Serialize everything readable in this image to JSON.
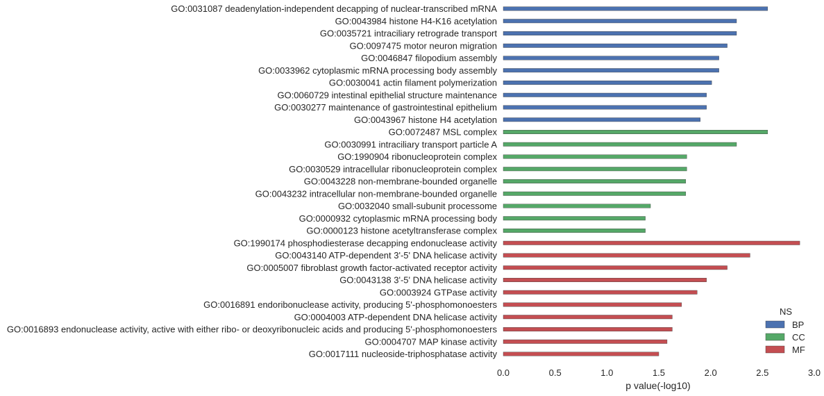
{
  "chart_data": {
    "type": "bar",
    "orientation": "horizontal",
    "xlabel": "p value(-log10)",
    "xlim": [
      0,
      3.0
    ],
    "xticks": [
      "0.0",
      "0.5",
      "1.0",
      "1.5",
      "2.0",
      "2.5",
      "3.0"
    ],
    "grid": false,
    "legend": {
      "title": "NS",
      "placement": "bottom-right",
      "entries": [
        {
          "name": "BP",
          "color": "#4c72b0"
        },
        {
          "name": "CC",
          "color": "#55a868"
        },
        {
          "name": "MF",
          "color": "#c44e52"
        }
      ]
    },
    "bars": [
      {
        "label": "GO:0031087 deadenylation-independent decapping of nuclear-transcribed mRNA",
        "value": 2.55,
        "ns": "BP"
      },
      {
        "label": "GO:0043984 histone H4-K16 acetylation",
        "value": 2.25,
        "ns": "BP"
      },
      {
        "label": "GO:0035721 intraciliary retrograde transport",
        "value": 2.25,
        "ns": "BP"
      },
      {
        "label": "GO:0097475 motor neuron migration",
        "value": 2.16,
        "ns": "BP"
      },
      {
        "label": "GO:0046847 filopodium assembly",
        "value": 2.08,
        "ns": "BP"
      },
      {
        "label": "GO:0033962 cytoplasmic mRNA processing body assembly",
        "value": 2.08,
        "ns": "BP"
      },
      {
        "label": "GO:0030041 actin filament polymerization",
        "value": 2.01,
        "ns": "BP"
      },
      {
        "label": "GO:0060729 intestinal epithelial structure maintenance",
        "value": 1.96,
        "ns": "BP"
      },
      {
        "label": "GO:0030277 maintenance of gastrointestinal epithelium",
        "value": 1.96,
        "ns": "BP"
      },
      {
        "label": "GO:0043967 histone H4 acetylation",
        "value": 1.9,
        "ns": "BP"
      },
      {
        "label": "GO:0072487 MSL complex",
        "value": 2.55,
        "ns": "CC"
      },
      {
        "label": "GO:0030991 intraciliary transport particle A",
        "value": 2.25,
        "ns": "CC"
      },
      {
        "label": "GO:1990904 ribonucleoprotein complex",
        "value": 1.77,
        "ns": "CC"
      },
      {
        "label": "GO:0030529 intracellular ribonucleoprotein complex",
        "value": 1.77,
        "ns": "CC"
      },
      {
        "label": "GO:0043228 non-membrane-bounded organelle",
        "value": 1.76,
        "ns": "CC"
      },
      {
        "label": "GO:0043232 intracellular non-membrane-bounded organelle",
        "value": 1.76,
        "ns": "CC"
      },
      {
        "label": "GO:0032040 small-subunit processome",
        "value": 1.42,
        "ns": "CC"
      },
      {
        "label": "GO:0000932 cytoplasmic mRNA processing body",
        "value": 1.37,
        "ns": "CC"
      },
      {
        "label": "GO:0000123 histone acetyltransferase complex",
        "value": 1.37,
        "ns": "CC"
      },
      {
        "label": "GO:1990174 phosphodiesterase decapping endonuclease activity",
        "value": 2.86,
        "ns": "MF"
      },
      {
        "label": "GO:0043140 ATP-dependent 3'-5' DNA helicase activity",
        "value": 2.38,
        "ns": "MF"
      },
      {
        "label": "GO:0005007 fibroblast growth factor-activated receptor activity",
        "value": 2.16,
        "ns": "MF"
      },
      {
        "label": "GO:0043138 3'-5' DNA helicase activity",
        "value": 1.96,
        "ns": "MF"
      },
      {
        "label": "GO:0003924 GTPase activity",
        "value": 1.87,
        "ns": "MF"
      },
      {
        "label": "GO:0016891 endoribonuclease activity, producing 5'-phosphomonoesters",
        "value": 1.72,
        "ns": "MF"
      },
      {
        "label": "GO:0004003 ATP-dependent DNA helicase activity",
        "value": 1.63,
        "ns": "MF"
      },
      {
        "label": "GO:0016893 endonuclease activity, active with either ribo- or deoxyribonucleic acids and producing 5'-phosphomonoesters",
        "value": 1.63,
        "ns": "MF"
      },
      {
        "label": "GO:0004707 MAP kinase activity",
        "value": 1.58,
        "ns": "MF"
      },
      {
        "label": "GO:0017111 nucleoside-triphosphatase activity",
        "value": 1.5,
        "ns": "MF"
      }
    ]
  }
}
